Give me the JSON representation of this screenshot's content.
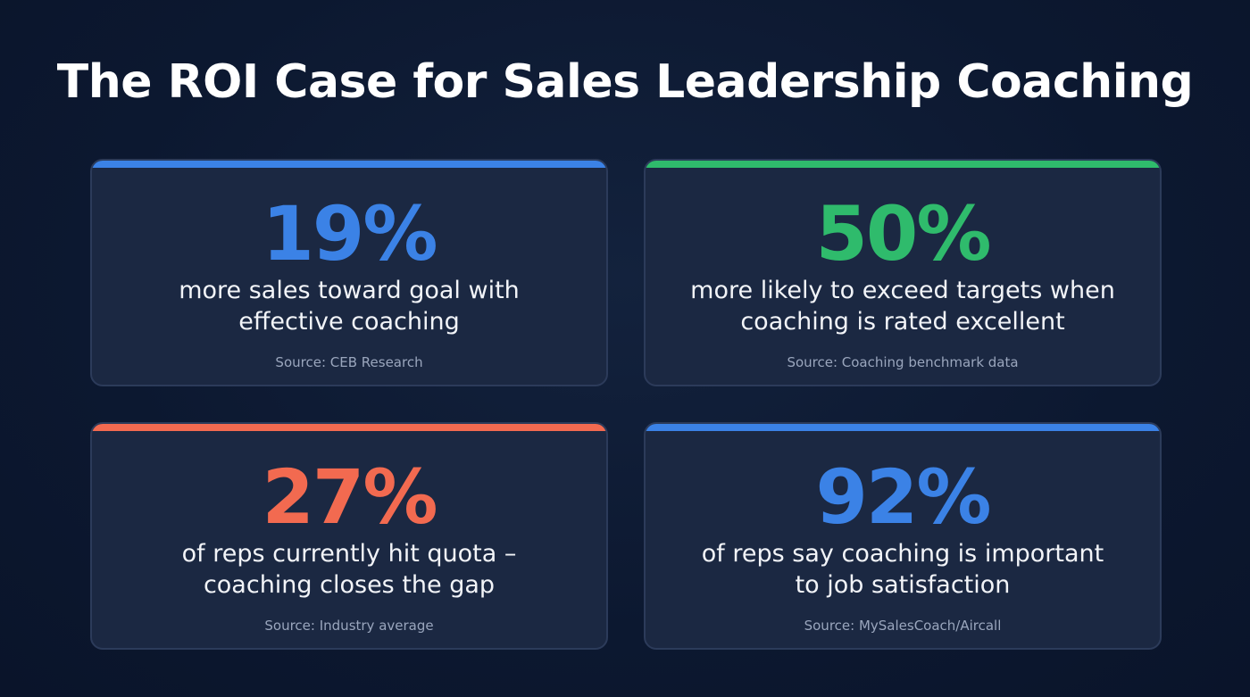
{
  "title": "The ROI Case for Sales Leadership Coaching",
  "cards": [
    {
      "stat": "19%",
      "color": "#3b82e6",
      "description_line1": "more sales toward goal with",
      "description_line2": "effective coaching",
      "source": "Source: CEB Research"
    },
    {
      "stat": "50%",
      "color": "#2fbb6c",
      "description_line1": "more likely to exceed targets when",
      "description_line2": "coaching is rated excellent",
      "source": "Source: Coaching benchmark data"
    },
    {
      "stat": "27%",
      "color": "#f26a50",
      "description_line1": "of reps currently hit quota –",
      "description_line2": "coaching closes the gap",
      "source": "Source: Industry average"
    },
    {
      "stat": "92%",
      "color": "#3b82e6",
      "description_line1": "of reps say coaching is important",
      "description_line2": "to job satisfaction",
      "source": "Source: MySalesCoach/Aircall"
    }
  ]
}
